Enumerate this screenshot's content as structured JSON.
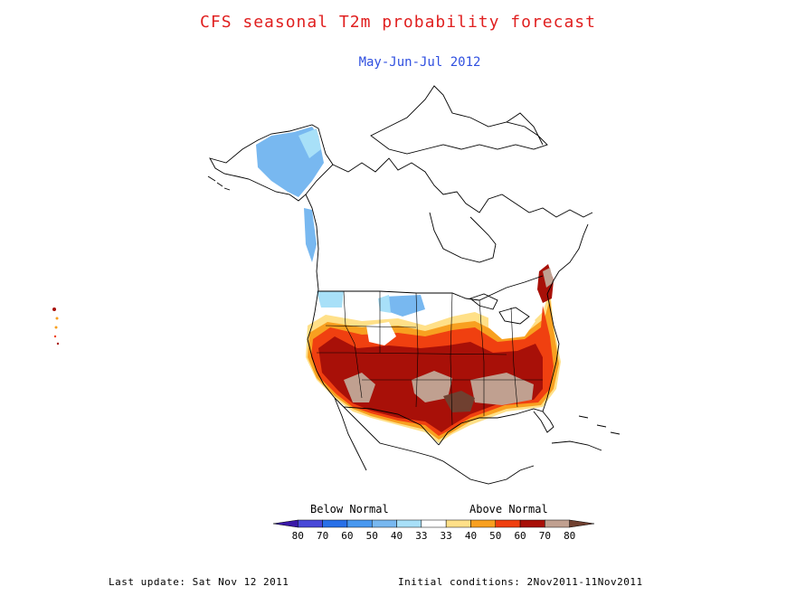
{
  "title": "CFS seasonal T2m probability forecast",
  "subtitle": "May-Jun-Jul 2012",
  "colors": {
    "title": "#e02020",
    "subtitle": "#3050e0",
    "coast": "#000000"
  },
  "legend": {
    "below_label": "Below Normal",
    "above_label": "Above Normal",
    "ticks": [
      "80",
      "70",
      "60",
      "50",
      "40",
      "33",
      "33",
      "40",
      "50",
      "60",
      "70",
      "80"
    ],
    "swatches": [
      "#3a18a8",
      "#4848d8",
      "#2870e8",
      "#4898f0",
      "#78b8f0",
      "#a8e0f8",
      "#ffffff",
      "#ffe088",
      "#f8a020",
      "#f04010",
      "#a81008",
      "#c0a090",
      "#704030"
    ]
  },
  "footer": {
    "last_update": "Last update: Sat Nov 12 2011",
    "initial_conditions": "Initial conditions: 2Nov2011-11Nov2011"
  }
}
